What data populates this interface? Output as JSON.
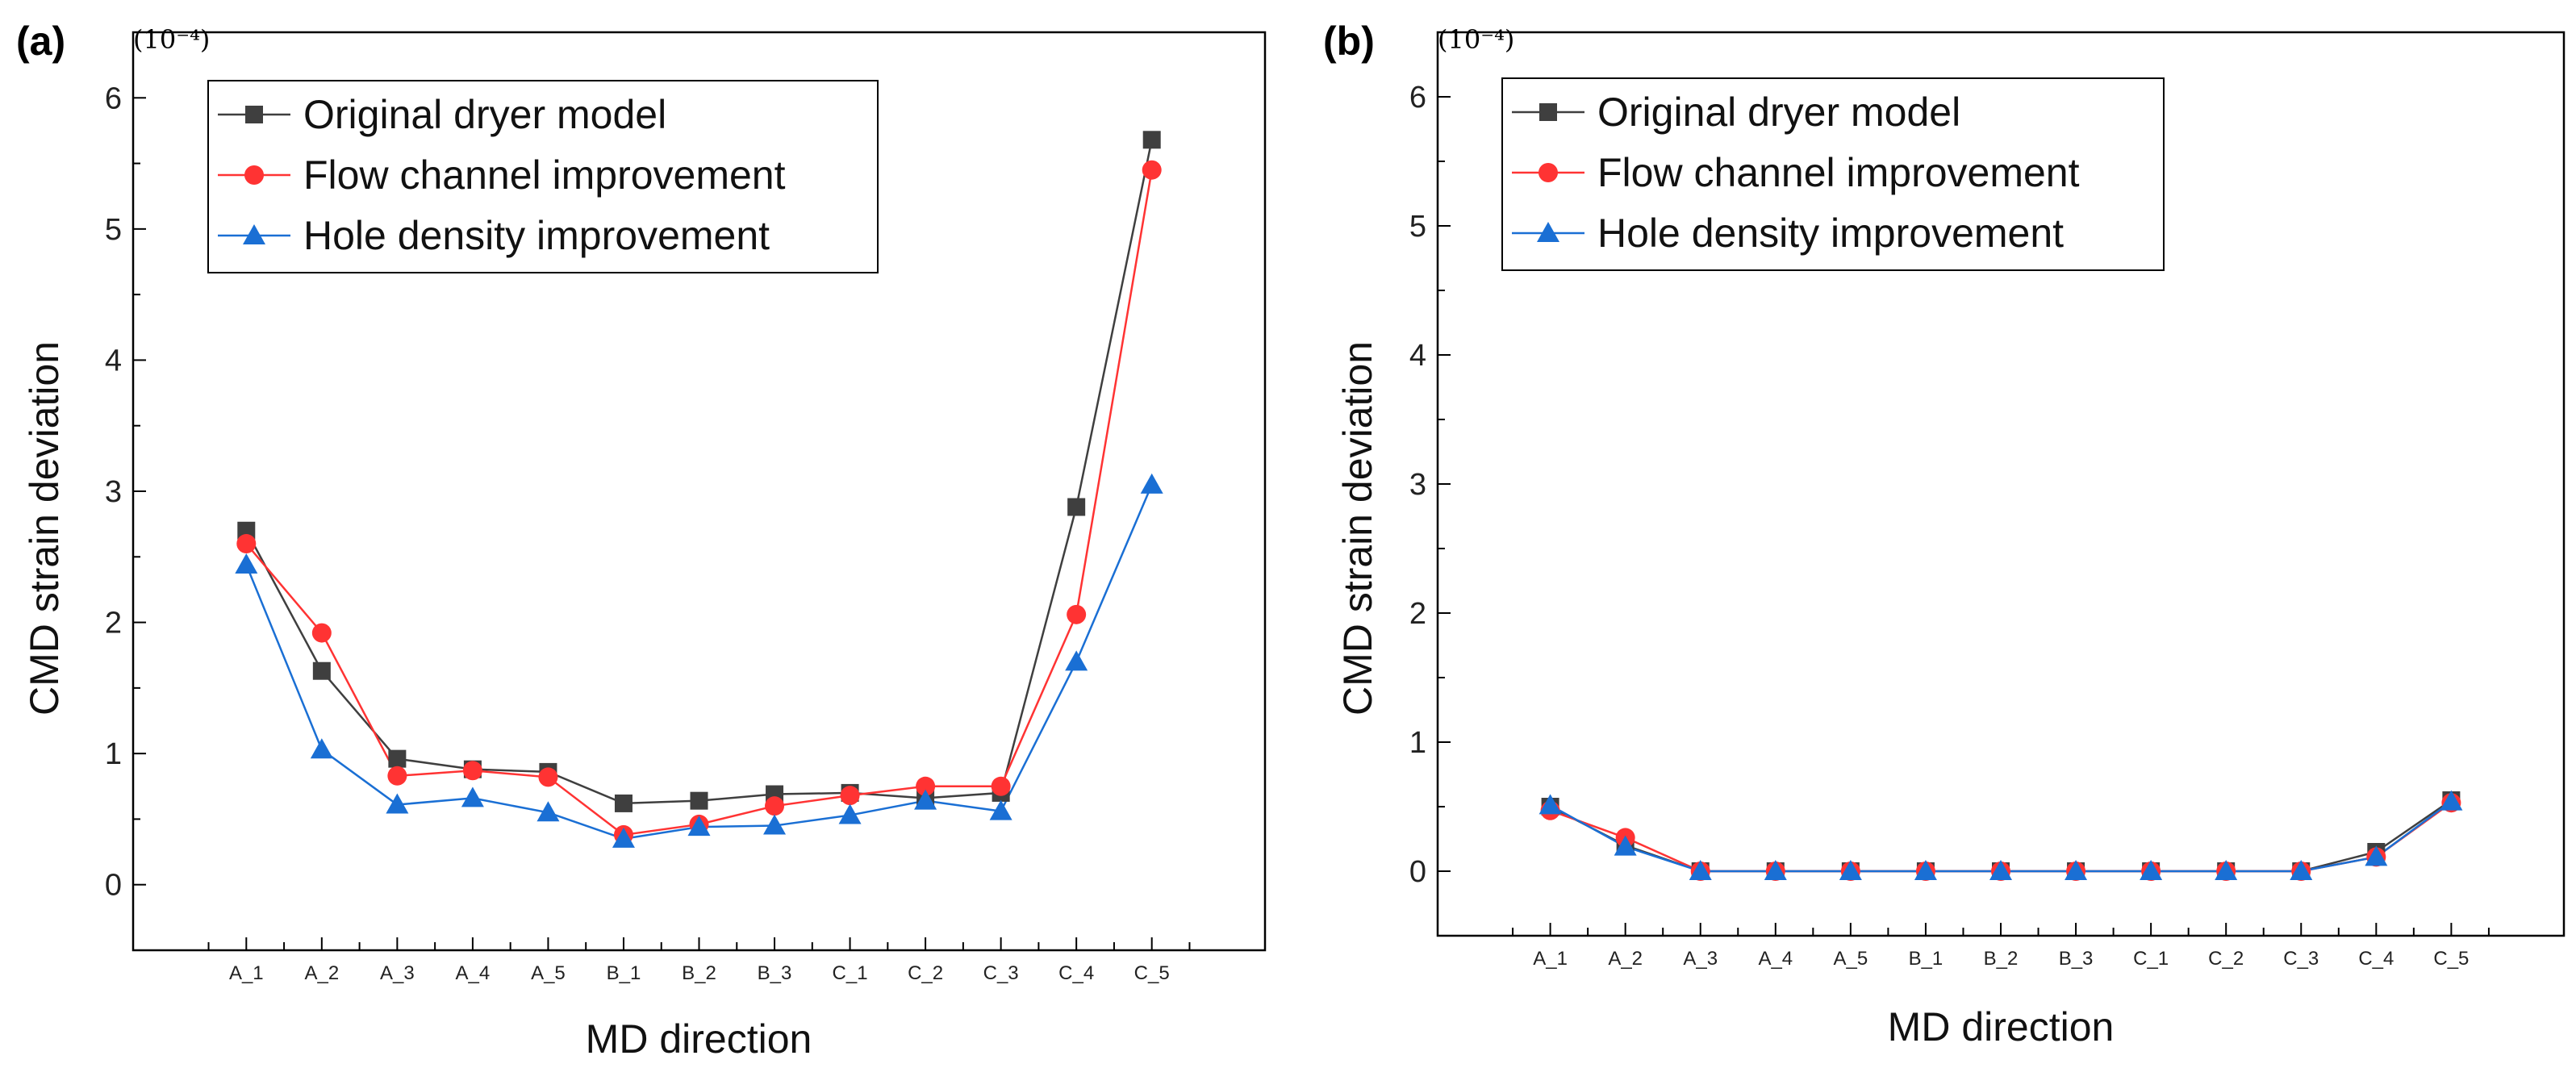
{
  "chart_data": [
    {
      "type": "line",
      "panel_label": "(a)",
      "multiplier_label": "(10⁻⁴)",
      "xlabel": "MD direction",
      "ylabel": "CMD strain deviation",
      "categories": [
        "A_1",
        "A_2",
        "A_3",
        "A_4",
        "A_5",
        "B_1",
        "B_2",
        "B_3",
        "C_1",
        "C_2",
        "C_3",
        "C_4",
        "C_5"
      ],
      "ylim": [
        -0.5,
        6.5
      ],
      "yticks": [
        "0",
        "1",
        "2",
        "3",
        "4",
        "5",
        "6"
      ],
      "legend_position": "top-left",
      "series": [
        {
          "name": "Original dryer model",
          "marker": "square",
          "color": "#3f3f3f",
          "values": [
            2.7,
            1.63,
            0.96,
            0.88,
            0.86,
            0.62,
            0.64,
            0.69,
            0.7,
            0.66,
            0.7,
            2.88,
            5.68
          ]
        },
        {
          "name": "Flow channel improvement",
          "marker": "circle",
          "color": "#ff3333",
          "values": [
            2.6,
            1.92,
            0.83,
            0.87,
            0.82,
            0.38,
            0.46,
            0.6,
            0.68,
            0.75,
            0.75,
            2.06,
            5.45
          ]
        },
        {
          "name": "Hole density improvement",
          "marker": "triangle",
          "color": "#1a6fd4",
          "values": [
            2.44,
            1.03,
            0.61,
            0.66,
            0.55,
            0.35,
            0.44,
            0.45,
            0.53,
            0.64,
            0.56,
            1.7,
            3.05
          ]
        }
      ]
    },
    {
      "type": "line",
      "panel_label": "(b)",
      "multiplier_label": "(10⁻⁴)",
      "xlabel": "MD direction",
      "ylabel": "CMD strain deviation",
      "categories": [
        "A_1",
        "A_2",
        "A_3",
        "A_4",
        "A_5",
        "B_1",
        "B_2",
        "B_3",
        "C_1",
        "C_2",
        "C_3",
        "C_4",
        "C_5"
      ],
      "ylim": [
        -0.5,
        6.5
      ],
      "yticks": [
        "0",
        "1",
        "2",
        "3",
        "4",
        "5",
        "6"
      ],
      "legend_position": "top-left",
      "series": [
        {
          "name": "Original dryer model",
          "marker": "square",
          "color": "#3f3f3f",
          "values": [
            0.5,
            0.2,
            0.0,
            0.0,
            0.0,
            0.0,
            0.0,
            0.0,
            0.0,
            0.0,
            0.0,
            0.15,
            0.55
          ]
        },
        {
          "name": "Flow channel improvement",
          "marker": "circle",
          "color": "#ff3333",
          "values": [
            0.47,
            0.26,
            0.0,
            0.0,
            0.0,
            0.0,
            0.0,
            0.0,
            0.0,
            0.0,
            0.0,
            0.11,
            0.53
          ]
        },
        {
          "name": "Hole density improvement",
          "marker": "triangle",
          "color": "#1a6fd4",
          "values": [
            0.51,
            0.19,
            0.0,
            0.0,
            0.0,
            0.0,
            0.0,
            0.0,
            0.0,
            0.0,
            0.0,
            0.11,
            0.54
          ]
        }
      ]
    }
  ]
}
